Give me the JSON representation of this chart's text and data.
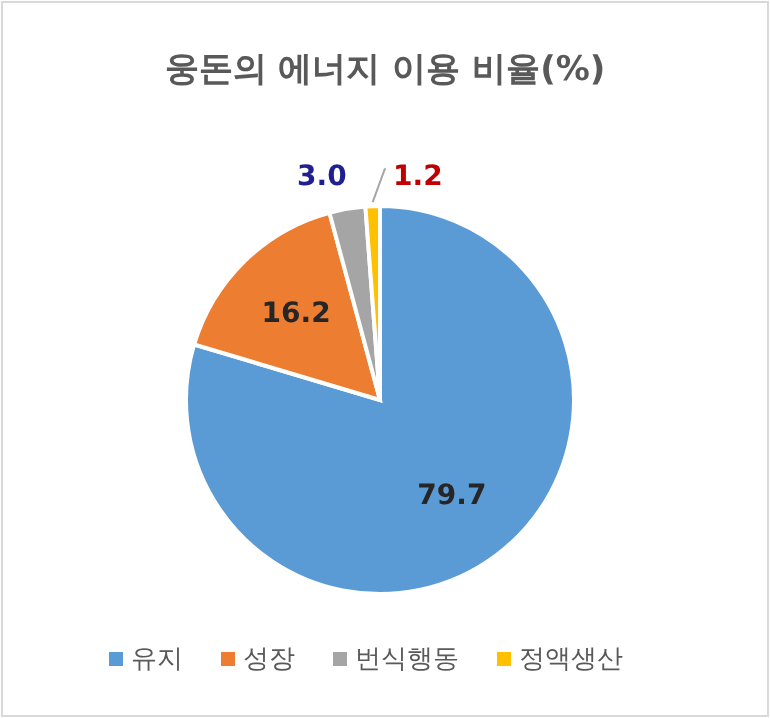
{
  "chart_data": {
    "type": "pie",
    "title": "웅돈의 에너지 이용 비율(%)",
    "categories": [
      "유지",
      "성장",
      "번식행동",
      "정액생산"
    ],
    "values": [
      79.7,
      16.2,
      3.0,
      1.2
    ],
    "colors": [
      "#5b9bd5",
      "#ed7d31",
      "#a5a5a5",
      "#ffc000"
    ],
    "value_labels": [
      "79.7",
      "16.2",
      "3.0",
      "1.2"
    ],
    "legend": "bottom"
  }
}
